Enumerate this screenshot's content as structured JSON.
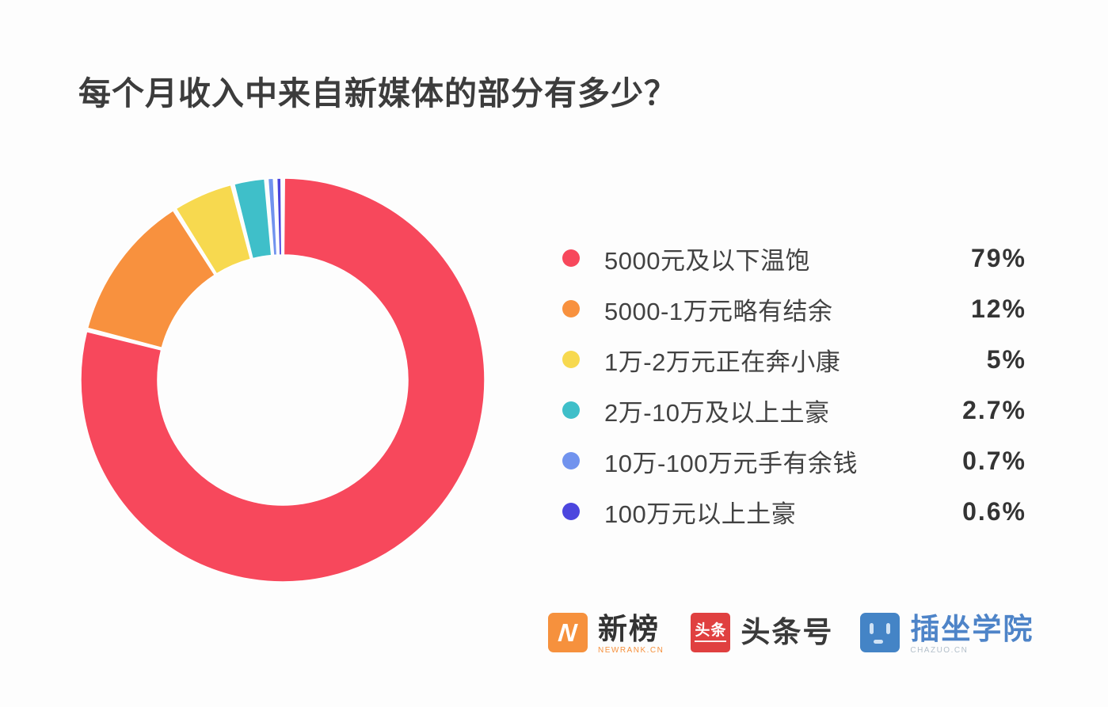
{
  "page": {
    "background": "#fdfdfd"
  },
  "title": "每个月收入中来自新媒体的部分有多少？",
  "chart_data": {
    "type": "pie",
    "subtype": "donut",
    "title": "每个月收入中来自新媒体的部分有多少？",
    "categories": [
      "5000元及以下温饱",
      "5000-1万元略有结余",
      "1万-2万元正在奔小康",
      "2万-10万及以上土豪",
      "10万-100万元手有余钱",
      "100万元以上土豪"
    ],
    "values": [
      79,
      12,
      5,
      2.7,
      0.7,
      0.6
    ],
    "value_labels": [
      "79%",
      "12%",
      "5%",
      "2.7%",
      "0.7%",
      "0.6%"
    ],
    "colors": [
      "#f7485c",
      "#f8913e",
      "#f7d94f",
      "#3fbfc9",
      "#7193ee",
      "#4c46de"
    ],
    "start_angle_deg": 0,
    "direction": "clockwise",
    "inner_radius_ratio": 0.62,
    "slice_gap_color": "#ffffff",
    "legend_position": "right"
  },
  "footer": {
    "logos": [
      {
        "name": "newrank",
        "icon": "newrank-lightning-n-icon",
        "icon_color": "#f6913d",
        "icon_glyph": "N",
        "text": "新榜",
        "text_color": "#333333",
        "subtext": "NEWRANK.CN",
        "subtext_color": "#f6913d"
      },
      {
        "name": "toutiao",
        "icon": "toutiao-icon",
        "icon_color": "#e04040",
        "icon_text": "头条",
        "text": "头条号",
        "text_color": "#3a3a3a",
        "subtext": "",
        "subtext_color": ""
      },
      {
        "name": "chazuo",
        "icon": "chazuo-face-icon",
        "icon_color": "#4484c6",
        "text": "插坐学院",
        "text_color": "#4e84c8",
        "subtext": "CHAZUO.CN",
        "subtext_color": "#b3bfca"
      }
    ]
  }
}
